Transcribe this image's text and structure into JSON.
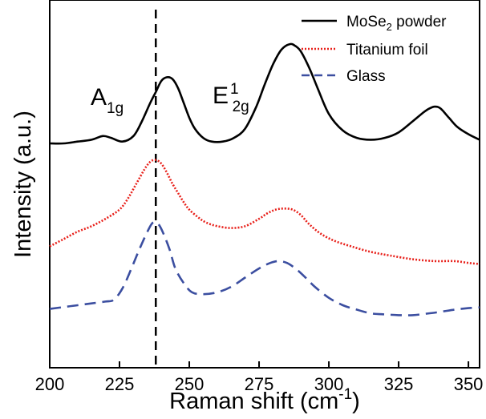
{
  "chart_data": {
    "type": "line",
    "xlabel": "Raman shift (cm",
    "xlabel_superscript": "-1",
    "xlabel_suffix": ")",
    "ylabel": "Intensity (a.u.)",
    "xlim": [
      200,
      354
    ],
    "x_ticks": [
      "200",
      "225",
      "250",
      "275",
      "300",
      "325",
      "350"
    ],
    "y_ticks": [],
    "grid": false,
    "legend_position": "top-right",
    "legend": [
      {
        "text": "MoSe",
        "subscript": "2",
        "suffix": " powder",
        "series": 0
      },
      {
        "text": "Titanium foil",
        "subscript": "",
        "suffix": "",
        "series": 1
      },
      {
        "text": "Glass",
        "subscript": "",
        "suffix": "",
        "series": 2
      }
    ],
    "annotations": [
      {
        "main": "A",
        "sub": "1g",
        "sup": ""
      },
      {
        "main": "E",
        "sub": "2g",
        "sup": "1"
      }
    ],
    "reference_line_x": 238,
    "series": [
      {
        "name": "MoSe2 powder",
        "color": "#000000",
        "dash": "solid",
        "x": [
          200,
          205,
          210,
          215,
          219,
          222,
          226,
          230,
          233,
          236,
          238,
          240,
          242,
          244,
          246,
          248,
          250,
          252,
          255,
          258,
          262,
          266,
          270,
          274,
          277,
          280,
          283,
          286,
          288,
          290,
          293,
          296,
          300,
          305,
          310,
          315,
          320,
          325,
          330,
          334,
          336,
          338,
          340,
          343,
          346,
          350,
          354
        ],
        "y": [
          0.61,
          0.61,
          0.615,
          0.62,
          0.63,
          0.625,
          0.615,
          0.63,
          0.67,
          0.72,
          0.75,
          0.78,
          0.79,
          0.785,
          0.76,
          0.72,
          0.68,
          0.65,
          0.625,
          0.615,
          0.615,
          0.625,
          0.65,
          0.71,
          0.77,
          0.825,
          0.865,
          0.88,
          0.875,
          0.86,
          0.815,
          0.76,
          0.69,
          0.645,
          0.625,
          0.62,
          0.625,
          0.64,
          0.67,
          0.695,
          0.705,
          0.71,
          0.705,
          0.68,
          0.655,
          0.635,
          0.62
        ]
      },
      {
        "name": "Titanium foil",
        "color": "#e8201a",
        "dash": "dotted",
        "x": [
          200,
          205,
          210,
          215,
          220,
          225,
          228,
          231,
          234,
          236,
          238,
          240,
          242,
          244,
          246,
          248,
          250,
          253,
          256,
          260,
          265,
          270,
          275,
          278,
          281,
          284,
          287,
          290,
          293,
          297,
          302,
          308,
          315,
          322,
          330,
          338,
          345,
          350,
          354
        ],
        "y": [
          0.33,
          0.35,
          0.37,
          0.385,
          0.405,
          0.43,
          0.46,
          0.5,
          0.54,
          0.56,
          0.565,
          0.555,
          0.53,
          0.5,
          0.475,
          0.45,
          0.43,
          0.41,
          0.395,
          0.385,
          0.38,
          0.385,
          0.405,
          0.42,
          0.43,
          0.433,
          0.43,
          0.415,
          0.39,
          0.365,
          0.345,
          0.33,
          0.315,
          0.305,
          0.295,
          0.29,
          0.29,
          0.285,
          0.282
        ]
      },
      {
        "name": "Glass",
        "color": "#3b4ea0",
        "dash": "dashed",
        "x": [
          200,
          205,
          210,
          215,
          220,
          223,
          226,
          229,
          232,
          235,
          237,
          239,
          241,
          243,
          245,
          248,
          251,
          255,
          260,
          265,
          270,
          275,
          279,
          282,
          285,
          288,
          291,
          295,
          300,
          305,
          310,
          315,
          320,
          325,
          330,
          335,
          340,
          345,
          350,
          354
        ],
        "y": [
          0.16,
          0.165,
          0.17,
          0.175,
          0.18,
          0.185,
          0.215,
          0.265,
          0.32,
          0.37,
          0.395,
          0.39,
          0.36,
          0.32,
          0.27,
          0.23,
          0.205,
          0.2,
          0.205,
          0.22,
          0.245,
          0.27,
          0.285,
          0.29,
          0.285,
          0.27,
          0.25,
          0.22,
          0.19,
          0.17,
          0.158,
          0.148,
          0.145,
          0.143,
          0.143,
          0.147,
          0.152,
          0.158,
          0.162,
          0.164
        ]
      }
    ]
  }
}
